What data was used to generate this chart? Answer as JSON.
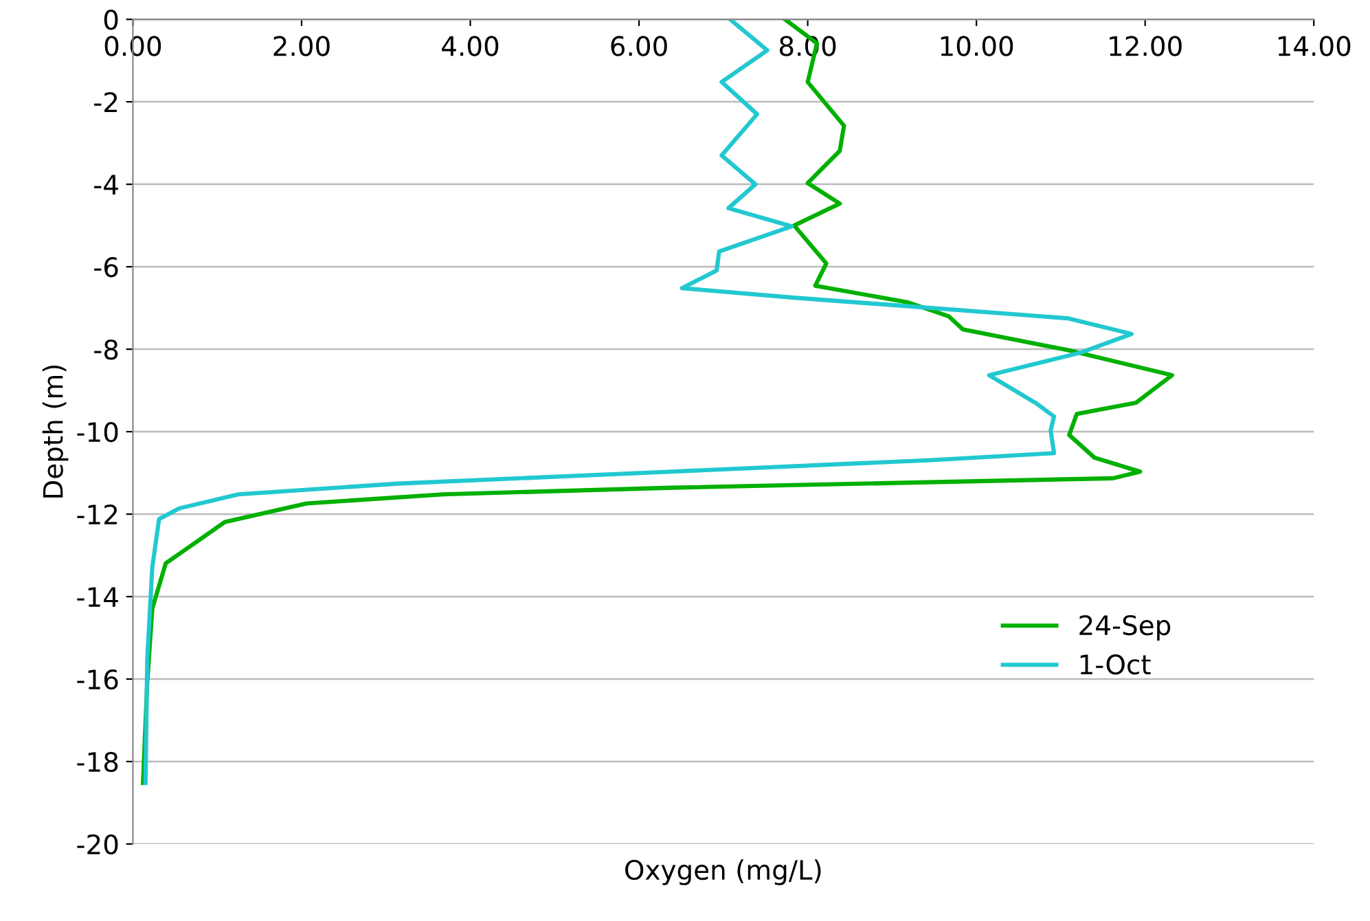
{
  "chart_data": {
    "type": "line",
    "xlabel": "Oxygen (mg/L)",
    "ylabel": "Depth (m)",
    "xlim": [
      0,
      14
    ],
    "xticks": [
      {
        "value": 0,
        "label": "0.00"
      },
      {
        "value": 2,
        "label": "2.00"
      },
      {
        "value": 4,
        "label": "4.00"
      },
      {
        "value": 6,
        "label": "6.00"
      },
      {
        "value": 8,
        "label": "8.00"
      },
      {
        "value": 10,
        "label": "10.00"
      },
      {
        "value": 12,
        "label": "12.00"
      },
      {
        "value": 14,
        "label": "14.00"
      }
    ],
    "ylim": [
      -20,
      0
    ],
    "yticks": [
      -20,
      -18,
      -16,
      -14,
      -12,
      -10,
      -8,
      -6,
      -4,
      -2,
      0
    ],
    "grid": "y",
    "legend": "bottom right",
    "marker": "none",
    "line_style": "solid",
    "series": [
      {
        "name": "24-Sep",
        "color": "#00b000",
        "x": [
          7.73,
          8.11,
          8.0,
          8.43,
          8.38,
          8.0,
          8.38,
          7.84,
          8.22,
          8.09,
          9.18,
          9.67,
          9.84,
          11.08,
          12.32,
          11.89,
          11.19,
          11.1,
          11.4,
          11.94,
          11.62,
          6.38,
          3.68,
          2.06,
          1.09,
          0.82,
          0.39,
          0.23,
          0.17,
          0.12
        ],
        "values": [
          0,
          -0.58,
          -1.52,
          -2.58,
          -3.19,
          -3.97,
          -4.47,
          -5.0,
          -5.92,
          -6.46,
          -6.86,
          -7.2,
          -7.52,
          -8.02,
          -8.63,
          -9.3,
          -9.57,
          -10.08,
          -10.63,
          -10.97,
          -11.13,
          -11.36,
          -11.52,
          -11.74,
          -12.19,
          -12.58,
          -13.19,
          -14.29,
          -16.09,
          -18.52
        ]
      },
      {
        "name": "1-Oct",
        "color": "#22c8d0",
        "x": [
          7.08,
          7.52,
          6.98,
          7.4,
          6.98,
          7.38,
          7.06,
          7.81,
          6.95,
          6.92,
          6.51,
          7.84,
          11.08,
          11.84,
          11.24,
          10.15,
          10.7,
          10.92,
          10.88,
          10.92,
          9.46,
          6.38,
          3.14,
          1.25,
          0.55,
          0.31,
          0.23,
          0.17,
          0.15
        ],
        "values": [
          0,
          -0.75,
          -1.52,
          -2.3,
          -3.3,
          -4.0,
          -4.58,
          -5.02,
          -5.63,
          -6.09,
          -6.52,
          -6.75,
          -7.25,
          -7.63,
          -8.08,
          -8.63,
          -9.3,
          -9.63,
          -9.97,
          -10.52,
          -10.69,
          -10.97,
          -11.26,
          -11.52,
          -11.86,
          -12.12,
          -13.29,
          -15.52,
          -18.52
        ]
      }
    ]
  }
}
